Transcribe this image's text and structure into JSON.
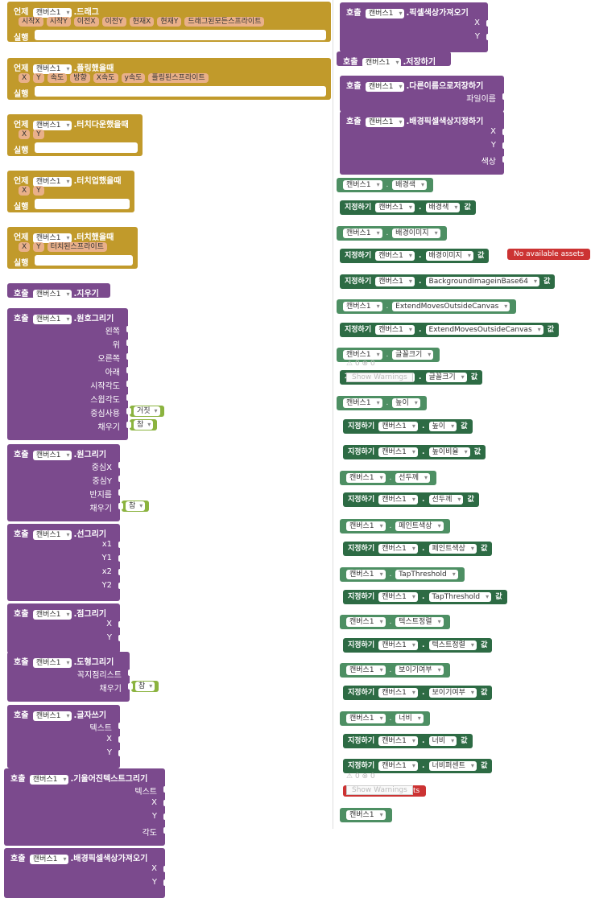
{
  "events": [
    {
      "when": "언제",
      "comp": "캔버스1",
      "name": ".드래그",
      "params": [
        "시작X",
        "시작Y",
        "이전X",
        "이전Y",
        "현재X",
        "현재Y",
        "드래그된모든스프라이트"
      ],
      "do": "실행"
    },
    {
      "when": "언제",
      "comp": "캔버스1",
      "name": ".플링했을때",
      "params": [
        "X",
        "Y",
        "속도",
        "방향",
        "X속도",
        "y속도",
        "플링된스프라이트"
      ],
      "do": "실행"
    },
    {
      "when": "언제",
      "comp": "캔버스1",
      "name": ".터치다운했을때",
      "params": [
        "X",
        "Y"
      ],
      "do": "실행"
    },
    {
      "when": "언제",
      "comp": "캔버스1",
      "name": ".터치업했을때",
      "params": [
        "X",
        "Y"
      ],
      "do": "실행"
    },
    {
      "when": "언제",
      "comp": "캔버스1",
      "name": ".터치했을때",
      "params": [
        "X",
        "Y",
        "터치된스프라이트"
      ],
      "do": "실행"
    }
  ],
  "calls_left": [
    {
      "call": "호출",
      "comp": "캔버스1",
      "name": ".지우기",
      "args": []
    },
    {
      "call": "호출",
      "comp": "캔버스1",
      "name": ".원호그리기",
      "args": [
        "왼쪽",
        "위",
        "오른쪽",
        "아래",
        "시작각도",
        "스윕각도",
        "중심사용",
        "채우기"
      ],
      "bools": {
        "6": "거짓",
        "7": "참"
      }
    },
    {
      "call": "호출",
      "comp": "캔버스1",
      "name": ".원그리기",
      "args": [
        "중심X",
        "중심Y",
        "반지름",
        "채우기"
      ],
      "bools": {
        "3": "참"
      }
    },
    {
      "call": "호출",
      "comp": "캔버스1",
      "name": ".선그리기",
      "args": [
        "x1",
        "Y1",
        "x2",
        "Y2"
      ]
    },
    {
      "call": "호출",
      "comp": "캔버스1",
      "name": ".점그리기",
      "args": [
        "X",
        "Y"
      ]
    },
    {
      "call": "호출",
      "comp": "캔버스1",
      "name": ".도형그리기",
      "args": [
        "꼭지점리스트",
        "채우기"
      ],
      "bools": {
        "1": "참"
      }
    },
    {
      "call": "호출",
      "comp": "캔버스1",
      "name": ".글자쓰기",
      "args": [
        "텍스트",
        "X",
        "Y"
      ]
    },
    {
      "call": "호출",
      "comp": "캔버스1",
      "name": ".기울어진텍스트그리기",
      "args": [
        "텍스트",
        "X",
        "Y",
        "각도"
      ]
    },
    {
      "call": "호출",
      "comp": "캔버스1",
      "name": ".배경픽셀색상가져오기",
      "args": [
        "X",
        "Y"
      ]
    }
  ],
  "calls_right": [
    {
      "call": "호출",
      "comp": "캔버스1",
      "name": ".픽셀색상가져오기",
      "args": [
        "X",
        "Y"
      ]
    },
    {
      "call": "호출",
      "comp": "캔버스1",
      "name": ".저장하기",
      "args": []
    },
    {
      "call": "호출",
      "comp": "캔버스1",
      "name": ".다른이름으로저장하기",
      "args": [
        "파일이름"
      ]
    },
    {
      "call": "호출",
      "comp": "캔버스1",
      "name": ".배경픽셀색상지정하기",
      "args": [
        "X",
        "Y",
        "색상"
      ]
    }
  ],
  "props": [
    {
      "kind": "get",
      "comp": "캔버스1",
      "prop": "배경색"
    },
    {
      "kind": "set",
      "set": "지정하기",
      "comp": "캔버스1",
      "prop": "배경색",
      "val": "값"
    },
    {
      "kind": "get",
      "comp": "캔버스1",
      "prop": "배경이미지"
    },
    {
      "kind": "set",
      "set": "지정하기",
      "comp": "캔버스1",
      "prop": "배경이미지",
      "val": "값"
    },
    {
      "kind": "set",
      "set": "지정하기",
      "comp": "캔버스1",
      "prop": "BackgroundImageinBase64",
      "val": "값"
    },
    {
      "kind": "get",
      "comp": "캔버스1",
      "prop": "ExtendMovesOutsideCanvas"
    },
    {
      "kind": "set",
      "set": "지정하기",
      "comp": "캔버스1",
      "prop": "ExtendMovesOutsideCanvas",
      "val": "값"
    },
    {
      "kind": "get",
      "comp": "캔버스1",
      "prop": "글꼴크기"
    },
    {
      "kind": "set",
      "set": "지정하기",
      "comp": "캔버스1",
      "prop": "글꼴크기",
      "val": "값"
    },
    {
      "kind": "get",
      "comp": "캔버스1",
      "prop": "높이"
    },
    {
      "kind": "set",
      "set": "지정하기",
      "comp": "캔버스1",
      "prop": "높이",
      "val": "값"
    },
    {
      "kind": "set",
      "set": "지정하기",
      "comp": "캔버스1",
      "prop": "높이비율",
      "val": "값"
    },
    {
      "kind": "get",
      "comp": "캔버스1",
      "prop": "선두께"
    },
    {
      "kind": "set",
      "set": "지정하기",
      "comp": "캔버스1",
      "prop": "선두께",
      "val": "값"
    },
    {
      "kind": "get",
      "comp": "캔버스1",
      "prop": "페인트색상"
    },
    {
      "kind": "set",
      "set": "지정하기",
      "comp": "캔버스1",
      "prop": "페인트색상",
      "val": "값"
    },
    {
      "kind": "get",
      "comp": "캔버스1",
      "prop": "TapThreshold"
    },
    {
      "kind": "set",
      "set": "지정하기",
      "comp": "캔버스1",
      "prop": "TapThreshold",
      "val": "값"
    },
    {
      "kind": "get",
      "comp": "캔버스1",
      "prop": "텍스트정렬"
    },
    {
      "kind": "set",
      "set": "지정하기",
      "comp": "캔버스1",
      "prop": "텍스트정렬",
      "val": "값"
    },
    {
      "kind": "get",
      "comp": "캔버스1",
      "prop": "보이기여부"
    },
    {
      "kind": "set",
      "set": "지정하기",
      "comp": "캔버스1",
      "prop": "보이기여부",
      "val": "값"
    },
    {
      "kind": "get",
      "comp": "캔버스1",
      "prop": "너비"
    },
    {
      "kind": "set",
      "set": "지정하기",
      "comp": "캔버스1",
      "prop": "너비",
      "val": "값"
    },
    {
      "kind": "set",
      "set": "지정하기",
      "comp": "캔버스1",
      "prop": "너비퍼센트",
      "val": "값"
    }
  ],
  "last_getter": {
    "comp": "캔버스1"
  },
  "warnings": {
    "no_assets": "No available assets",
    "show_warnings": "Show Warnings",
    "count_warn": "0",
    "count_err": "0"
  },
  "colors": {
    "event": "#c19a2b",
    "procedure": "#7b4a8d",
    "getter": "#4d8f63",
    "setter": "#2d6b44",
    "bool": "#8bb33f",
    "param": "#e9b08a",
    "warn": "#cc3333"
  }
}
